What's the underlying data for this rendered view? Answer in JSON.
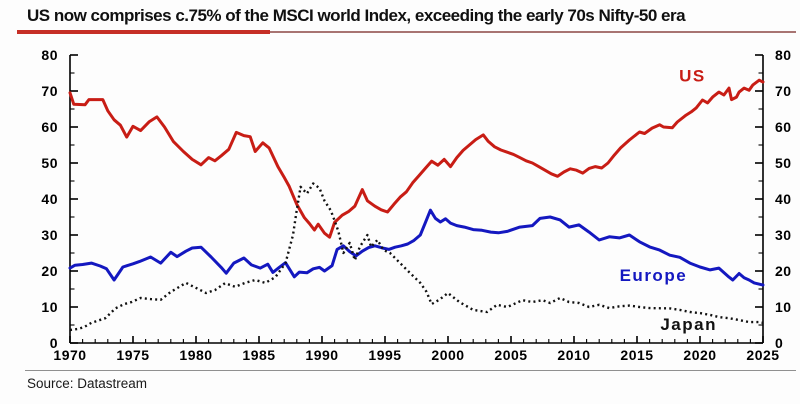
{
  "page": {
    "accent_red": "#c62f26",
    "underline_thin_color": "#a87472"
  },
  "chart_data": {
    "type": "line",
    "title": "US now comprises c.75% of the MSCI world Index, exceeding the early 70s Nifty-50 era",
    "source": "Source: Datastream",
    "x_range": [
      1970,
      2025
    ],
    "y_range": [
      0,
      80
    ],
    "y_major_ticks": [
      0,
      10,
      20,
      30,
      40,
      50,
      60,
      70,
      80
    ],
    "y_minor_step": 5,
    "x_major_ticks": [
      1970,
      1975,
      1980,
      1985,
      1990,
      1995,
      2000,
      2005,
      2010,
      2015,
      2020,
      2025
    ],
    "x_minor_step": 1,
    "axes": [
      "left",
      "right",
      "bottom"
    ],
    "grid": false,
    "legend_position": "inline-labels",
    "series": [
      {
        "name": "US",
        "color": "#c81d15",
        "width": 3,
        "dash": null,
        "label": {
          "x": 2019.4,
          "y": 72.7
        },
        "points": [
          [
            1970.0,
            69.5
          ],
          [
            1970.3,
            66.3
          ],
          [
            1971.2,
            66.2
          ],
          [
            1971.5,
            67.6
          ],
          [
            1972.6,
            67.6
          ],
          [
            1973.0,
            64.5
          ],
          [
            1973.5,
            62.0
          ],
          [
            1974.0,
            60.5
          ],
          [
            1974.5,
            57.2
          ],
          [
            1975.0,
            60.2
          ],
          [
            1975.6,
            59.0
          ],
          [
            1976.3,
            61.5
          ],
          [
            1976.9,
            62.8
          ],
          [
            1977.5,
            60.0
          ],
          [
            1978.2,
            56.0
          ],
          [
            1979.0,
            53.2
          ],
          [
            1979.7,
            51.0
          ],
          [
            1980.4,
            49.5
          ],
          [
            1981.0,
            51.5
          ],
          [
            1981.5,
            50.6
          ],
          [
            1982.0,
            52.0
          ],
          [
            1982.6,
            53.8
          ],
          [
            1983.2,
            58.5
          ],
          [
            1983.8,
            57.6
          ],
          [
            1984.3,
            57.3
          ],
          [
            1984.7,
            53.2
          ],
          [
            1985.3,
            55.6
          ],
          [
            1985.8,
            54.2
          ],
          [
            1986.5,
            49.0
          ],
          [
            1987.0,
            46.0
          ],
          [
            1987.4,
            43.5
          ],
          [
            1988.0,
            38.5
          ],
          [
            1988.6,
            34.8
          ],
          [
            1989.0,
            33.2
          ],
          [
            1989.4,
            31.4
          ],
          [
            1989.7,
            33.0
          ],
          [
            1990.2,
            30.5
          ],
          [
            1990.6,
            29.4
          ],
          [
            1991.0,
            33.5
          ],
          [
            1991.6,
            35.5
          ],
          [
            1992.1,
            36.5
          ],
          [
            1992.6,
            38.0
          ],
          [
            1993.2,
            42.6
          ],
          [
            1993.6,
            39.5
          ],
          [
            1994.2,
            38.0
          ],
          [
            1994.7,
            37.0
          ],
          [
            1995.2,
            36.4
          ],
          [
            1995.7,
            38.5
          ],
          [
            1996.2,
            40.5
          ],
          [
            1996.7,
            42.0
          ],
          [
            1997.2,
            44.5
          ],
          [
            1997.7,
            46.5
          ],
          [
            1998.2,
            48.5
          ],
          [
            1998.7,
            50.5
          ],
          [
            1999.2,
            49.4
          ],
          [
            1999.7,
            51.0
          ],
          [
            2000.2,
            49.0
          ],
          [
            2000.7,
            51.5
          ],
          [
            2001.2,
            53.5
          ],
          [
            2001.7,
            55.0
          ],
          [
            2002.2,
            56.5
          ],
          [
            2002.8,
            57.8
          ],
          [
            2003.2,
            56.0
          ],
          [
            2003.7,
            54.5
          ],
          [
            2004.2,
            53.6
          ],
          [
            2004.7,
            53.0
          ],
          [
            2005.2,
            52.4
          ],
          [
            2005.7,
            51.5
          ],
          [
            2006.2,
            50.6
          ],
          [
            2006.7,
            50.0
          ],
          [
            2007.2,
            49.0
          ],
          [
            2007.7,
            48.0
          ],
          [
            2008.2,
            47.0
          ],
          [
            2008.7,
            46.3
          ],
          [
            2009.2,
            47.5
          ],
          [
            2009.7,
            48.4
          ],
          [
            2010.2,
            48.0
          ],
          [
            2010.7,
            47.2
          ],
          [
            2011.2,
            48.5
          ],
          [
            2011.7,
            49.0
          ],
          [
            2012.2,
            48.6
          ],
          [
            2012.7,
            50.0
          ],
          [
            2013.2,
            52.2
          ],
          [
            2013.7,
            54.2
          ],
          [
            2014.4,
            56.4
          ],
          [
            2015.2,
            58.6
          ],
          [
            2015.6,
            58.2
          ],
          [
            2016.2,
            59.7
          ],
          [
            2016.8,
            60.6
          ],
          [
            2017.1,
            60.0
          ],
          [
            2017.8,
            59.8
          ],
          [
            2018.2,
            61.4
          ],
          [
            2018.9,
            63.3
          ],
          [
            2019.3,
            64.2
          ],
          [
            2019.7,
            65.3
          ],
          [
            2020.2,
            67.5
          ],
          [
            2020.6,
            66.7
          ],
          [
            2021.0,
            68.3
          ],
          [
            2021.5,
            69.7
          ],
          [
            2021.9,
            68.9
          ],
          [
            2022.3,
            70.8
          ],
          [
            2022.5,
            67.6
          ],
          [
            2022.9,
            68.3
          ],
          [
            2023.1,
            69.7
          ],
          [
            2023.5,
            70.8
          ],
          [
            2023.9,
            70.2
          ],
          [
            2024.2,
            71.7
          ],
          [
            2024.7,
            73.0
          ],
          [
            2025.0,
            72.5
          ]
        ]
      },
      {
        "name": "Europe",
        "color": "#1418c0",
        "width": 3,
        "dash": null,
        "label": {
          "x": 2016.3,
          "y": 17.2
        },
        "points": [
          [
            1970.0,
            20.8
          ],
          [
            1970.4,
            21.6
          ],
          [
            1971.0,
            21.8
          ],
          [
            1971.7,
            22.2
          ],
          [
            1972.4,
            21.4
          ],
          [
            1972.9,
            20.6
          ],
          [
            1973.5,
            17.5
          ],
          [
            1974.2,
            21.1
          ],
          [
            1975.0,
            22.0
          ],
          [
            1975.5,
            22.6
          ],
          [
            1976.4,
            23.9
          ],
          [
            1977.2,
            22.2
          ],
          [
            1978.0,
            25.2
          ],
          [
            1978.5,
            24.0
          ],
          [
            1979.2,
            25.5
          ],
          [
            1979.7,
            26.4
          ],
          [
            1980.4,
            26.6
          ],
          [
            1981.2,
            23.9
          ],
          [
            1982.0,
            21.0
          ],
          [
            1982.4,
            19.4
          ],
          [
            1983.0,
            22.2
          ],
          [
            1983.8,
            23.6
          ],
          [
            1984.4,
            21.7
          ],
          [
            1985.1,
            20.8
          ],
          [
            1985.7,
            21.9
          ],
          [
            1986.1,
            19.6
          ],
          [
            1986.6,
            21.0
          ],
          [
            1987.1,
            22.3
          ],
          [
            1987.8,
            18.4
          ],
          [
            1988.2,
            19.7
          ],
          [
            1988.8,
            19.5
          ],
          [
            1989.3,
            20.6
          ],
          [
            1989.8,
            21.0
          ],
          [
            1990.2,
            20.0
          ],
          [
            1990.8,
            21.5
          ],
          [
            1991.2,
            26.0
          ],
          [
            1991.7,
            27.0
          ],
          [
            1992.2,
            25.4
          ],
          [
            1992.7,
            24.2
          ],
          [
            1993.2,
            25.5
          ],
          [
            1993.7,
            26.5
          ],
          [
            1994.2,
            27.0
          ],
          [
            1994.8,
            26.4
          ],
          [
            1995.3,
            26.0
          ],
          [
            1995.8,
            26.6
          ],
          [
            1996.3,
            27.0
          ],
          [
            1996.8,
            27.5
          ],
          [
            1997.3,
            28.5
          ],
          [
            1997.8,
            30.0
          ],
          [
            1998.2,
            33.4
          ],
          [
            1998.6,
            36.9
          ],
          [
            1999.0,
            34.6
          ],
          [
            1999.4,
            33.6
          ],
          [
            1999.8,
            34.5
          ],
          [
            2000.2,
            33.3
          ],
          [
            2000.7,
            32.6
          ],
          [
            2001.3,
            32.2
          ],
          [
            2002.0,
            31.5
          ],
          [
            2002.7,
            31.3
          ],
          [
            2003.4,
            30.8
          ],
          [
            2004.0,
            30.6
          ],
          [
            2004.7,
            31.0
          ],
          [
            2005.7,
            32.2
          ],
          [
            2006.7,
            32.6
          ],
          [
            2007.3,
            34.6
          ],
          [
            2008.1,
            35.0
          ],
          [
            2008.9,
            34.2
          ],
          [
            2009.6,
            32.2
          ],
          [
            2010.4,
            32.8
          ],
          [
            2011.2,
            30.8
          ],
          [
            2012.0,
            28.6
          ],
          [
            2012.8,
            29.5
          ],
          [
            2013.6,
            29.2
          ],
          [
            2014.4,
            30.0
          ],
          [
            2015.2,
            28.1
          ],
          [
            2016.0,
            26.7
          ],
          [
            2016.8,
            25.8
          ],
          [
            2017.6,
            24.4
          ],
          [
            2018.4,
            23.8
          ],
          [
            2019.2,
            22.2
          ],
          [
            2020.0,
            21.1
          ],
          [
            2020.8,
            20.3
          ],
          [
            2021.5,
            20.8
          ],
          [
            2022.3,
            18.3
          ],
          [
            2022.6,
            17.5
          ],
          [
            2023.1,
            19.3
          ],
          [
            2023.5,
            18.1
          ],
          [
            2023.9,
            17.5
          ],
          [
            2024.3,
            16.7
          ],
          [
            2025.0,
            16.1
          ]
        ]
      },
      {
        "name": "Japan",
        "color": "#111111",
        "width": 2.4,
        "dash": "2 3.2",
        "label": {
          "x": 2019.1,
          "y": 3.6
        },
        "points": [
          [
            1970.0,
            3.6
          ],
          [
            1970.6,
            3.9
          ],
          [
            1971.1,
            4.4
          ],
          [
            1971.7,
            5.6
          ],
          [
            1972.8,
            6.9
          ],
          [
            1973.6,
            9.6
          ],
          [
            1974.3,
            10.8
          ],
          [
            1974.9,
            11.4
          ],
          [
            1975.6,
            12.5
          ],
          [
            1976.4,
            12.2
          ],
          [
            1977.2,
            12.0
          ],
          [
            1978.0,
            14.2
          ],
          [
            1979.2,
            16.7
          ],
          [
            1980.0,
            15.3
          ],
          [
            1980.8,
            13.9
          ],
          [
            1981.5,
            14.7
          ],
          [
            1982.3,
            16.6
          ],
          [
            1983.1,
            15.6
          ],
          [
            1983.9,
            16.7
          ],
          [
            1984.7,
            17.5
          ],
          [
            1985.5,
            16.7
          ],
          [
            1986.3,
            18.3
          ],
          [
            1987.1,
            22.2
          ],
          [
            1987.7,
            30.0
          ],
          [
            1988.0,
            37.0
          ],
          [
            1988.3,
            43.4
          ],
          [
            1988.8,
            41.5
          ],
          [
            1989.3,
            44.3
          ],
          [
            1989.8,
            43.0
          ],
          [
            1990.2,
            39.5
          ],
          [
            1990.7,
            36.8
          ],
          [
            1991.0,
            34.0
          ],
          [
            1991.3,
            31.0
          ],
          [
            1991.7,
            25.0
          ],
          [
            1992.2,
            27.8
          ],
          [
            1992.6,
            23.0
          ],
          [
            1993.0,
            26.7
          ],
          [
            1993.6,
            30.0
          ],
          [
            1993.9,
            26.7
          ],
          [
            1994.4,
            28.6
          ],
          [
            1994.9,
            25.8
          ],
          [
            1995.4,
            25.0
          ],
          [
            1996.2,
            22.2
          ],
          [
            1997.0,
            19.4
          ],
          [
            1997.8,
            16.7
          ],
          [
            1998.3,
            14.2
          ],
          [
            1998.7,
            10.8
          ],
          [
            1999.3,
            12.0
          ],
          [
            2000.0,
            13.9
          ],
          [
            2000.9,
            11.4
          ],
          [
            2002.0,
            9.2
          ],
          [
            2003.1,
            8.6
          ],
          [
            2003.9,
            10.6
          ],
          [
            2004.7,
            10.0
          ],
          [
            2005.1,
            10.6
          ],
          [
            2005.9,
            11.9
          ],
          [
            2006.7,
            11.4
          ],
          [
            2007.5,
            11.9
          ],
          [
            2008.1,
            11.1
          ],
          [
            2008.9,
            12.5
          ],
          [
            2009.6,
            11.4
          ],
          [
            2010.4,
            11.1
          ],
          [
            2011.2,
            10.0
          ],
          [
            2012.0,
            10.6
          ],
          [
            2012.8,
            9.7
          ],
          [
            2013.6,
            10.2
          ],
          [
            2014.4,
            10.4
          ],
          [
            2015.2,
            10.0
          ],
          [
            2016.0,
            9.7
          ],
          [
            2017.6,
            9.6
          ],
          [
            2018.4,
            9.2
          ],
          [
            2019.2,
            8.6
          ],
          [
            2020.0,
            8.3
          ],
          [
            2020.8,
            7.8
          ],
          [
            2021.5,
            7.2
          ],
          [
            2022.3,
            6.9
          ],
          [
            2023.1,
            6.4
          ],
          [
            2023.9,
            5.8
          ],
          [
            2024.7,
            5.8
          ],
          [
            2025.0,
            5.6
          ]
        ]
      }
    ]
  }
}
